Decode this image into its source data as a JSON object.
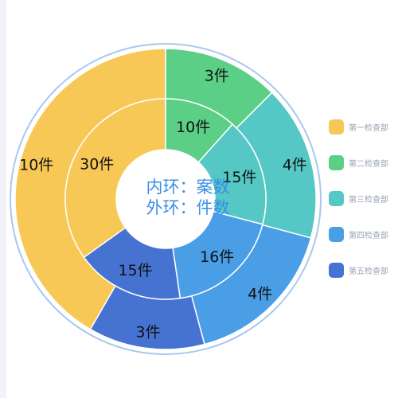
{
  "chart_data": {
    "type": "pie",
    "subtype": "nested-donut",
    "center_text": [
      "内环：案数",
      "外环：件数"
    ],
    "center_text_color": "#3a8ee6",
    "categories": [
      "第一检查部",
      "第二检查部",
      "第三检查部",
      "第四检查部",
      "第五检查部"
    ],
    "colors": [
      "#f7c856",
      "#5ccf86",
      "#55c8c6",
      "#4a9ee6",
      "#4673d2"
    ],
    "series": [
      {
        "ring": "inner",
        "values": [
          30,
          10,
          15,
          16,
          15
        ],
        "labels": [
          "30件",
          "10件",
          "15件",
          "16件",
          "15件"
        ]
      },
      {
        "ring": "outer",
        "values": [
          10,
          3,
          4,
          4,
          3
        ],
        "labels": [
          "10件",
          "3件",
          "4件",
          "4件",
          "3件"
        ]
      }
    ],
    "legend_position": "right"
  }
}
